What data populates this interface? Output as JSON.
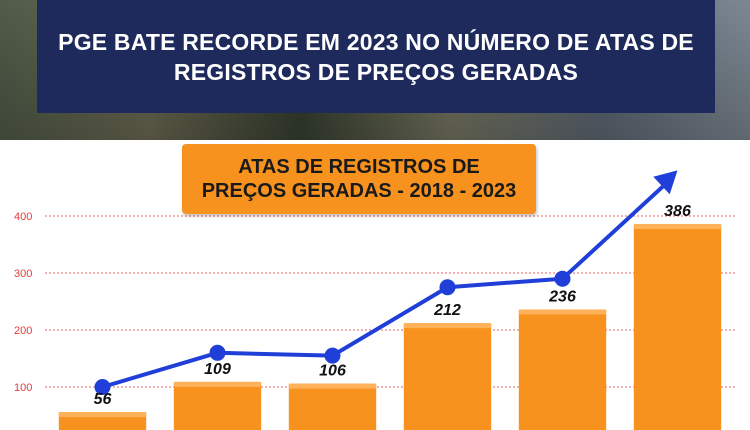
{
  "header": {
    "headline": "PGE BATE RECORDE EM 2023 NO NÚMERO DE ATAS DE REGISTROS DE PREÇOS GERADAS"
  },
  "colors": {
    "header_bg": "#1f2a5c",
    "bar": "#f7921e",
    "line": "#1f3fd8",
    "grid": "#e23b3b",
    "tick_text": "#e23b3b"
  },
  "chart_data": {
    "type": "bar",
    "title": "ATAS DE REGISTROS DE PREÇOS GERADAS - 2018 - 2023",
    "xlabel": "",
    "ylabel": "",
    "ylim": [
      0,
      400
    ],
    "yticks": [
      "100",
      "200",
      "300",
      "400"
    ],
    "values": [
      56,
      109,
      106,
      212,
      236,
      386
    ],
    "labels": [
      "56",
      "109",
      "106",
      "212",
      "236",
      "386"
    ],
    "overlay_line": {
      "type": "line",
      "values": [
        100,
        160,
        155,
        275,
        290,
        480
      ],
      "arrow": true
    },
    "grid": true,
    "legend": false
  }
}
